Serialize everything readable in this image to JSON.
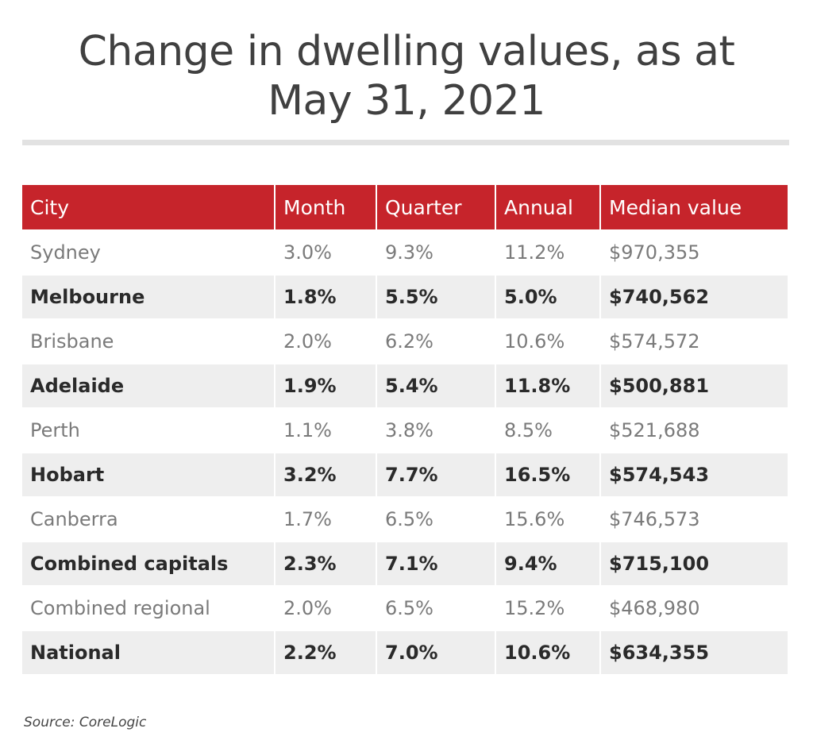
{
  "title_line1": "Change in dwelling values, as at",
  "title_line2": "May 31, 2021",
  "source": "Source: CoreLogic",
  "colors": {
    "header_bg": "#c6242b",
    "title_text": "#404040",
    "band_row_bg": "#eeeeee"
  },
  "chart_data": {
    "type": "table",
    "columns": [
      "City",
      "Month",
      "Quarter",
      "Annual",
      "Median value"
    ],
    "rows": [
      [
        "Sydney",
        "3.0%",
        "9.3%",
        "11.2%",
        "$970,355"
      ],
      [
        "Melbourne",
        "1.8%",
        "5.5%",
        "5.0%",
        "$740,562"
      ],
      [
        "Brisbane",
        "2.0%",
        "6.2%",
        "10.6%",
        "$574,572"
      ],
      [
        "Adelaide",
        "1.9%",
        "5.4%",
        "11.8%",
        "$500,881"
      ],
      [
        "Perth",
        "1.1%",
        "3.8%",
        "8.5%",
        "$521,688"
      ],
      [
        "Hobart",
        "3.2%",
        "7.7%",
        "16.5%",
        "$574,543"
      ],
      [
        "Canberra",
        "1.7%",
        "6.5%",
        "15.6%",
        "$746,573"
      ],
      [
        "Combined capitals",
        "2.3%",
        "7.1%",
        "9.4%",
        "$715,100"
      ],
      [
        "Combined regional",
        "2.0%",
        "6.5%",
        "15.2%",
        "$468,980"
      ],
      [
        "National",
        "2.2%",
        "7.0%",
        "10.6%",
        "$634,355"
      ]
    ]
  }
}
